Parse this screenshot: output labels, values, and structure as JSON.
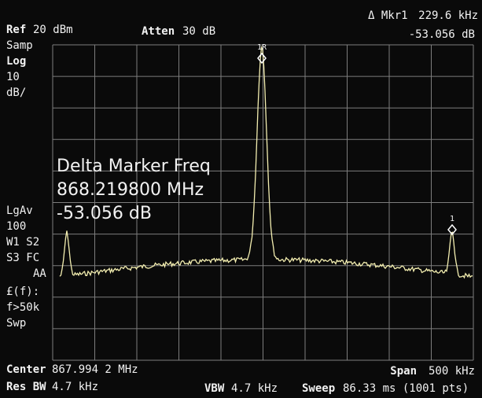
{
  "header": {
    "ref_label": "Ref",
    "ref_value": "20 dBm",
    "atten_label": "Atten",
    "atten_value": "30 dB",
    "marker_label": "Δ Mkr1",
    "marker_freq": "229.6 kHz",
    "marker_level": "-53.056 dB"
  },
  "side_labels": [
    "Samp",
    "Log",
    "10",
    "dB/",
    "LgAv",
    "100",
    "W1  S2",
    "S3  FC",
    "AA",
    "£(f):",
    "f>50k",
    "Swp"
  ],
  "overlay": [
    "Delta Marker Freq",
    "868.219800 MHz",
    "-53.056 dB"
  ],
  "markers": [
    "1R",
    "1"
  ],
  "footer": {
    "center_label": "Center",
    "center_value": "867.994 2 MHz",
    "span_label": "Span",
    "span_value": "500 kHz",
    "rbw_label": "Res BW",
    "rbw_value": "4.7 kHz",
    "vbw_label": "VBW",
    "vbw_value": "4.7 kHz",
    "sweep_label": "Sweep",
    "sweep_value": "86.33 ms (1001 pts)"
  }
}
